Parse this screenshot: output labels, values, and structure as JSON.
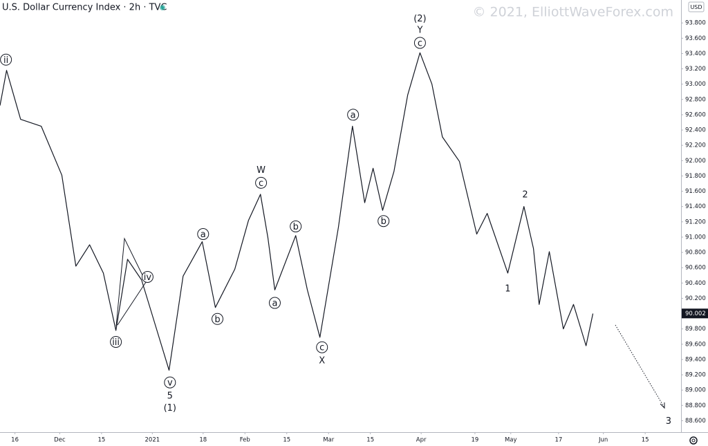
{
  "chart_data": {
    "type": "line",
    "title": "U.S. Dollar Currency Index · 2h · TVC",
    "watermark": "© 2021, ElliottWaveForex.com",
    "currency": "USD",
    "last_price": 90.002,
    "color": "#131722",
    "xlim": [
      -5,
      223
    ],
    "ylim": [
      88.45,
      94.1
    ],
    "xticks": [
      {
        "value": 0,
        "label": "16"
      },
      {
        "value": 15,
        "label": "Dec"
      },
      {
        "value": 29,
        "label": "15"
      },
      {
        "value": 46,
        "label": "2021"
      },
      {
        "value": 63,
        "label": "18"
      },
      {
        "value": 77,
        "label": "Feb"
      },
      {
        "value": 91,
        "label": "15"
      },
      {
        "value": 105,
        "label": "Mar"
      },
      {
        "value": 119,
        "label": "15"
      },
      {
        "value": 136,
        "label": "Apr"
      },
      {
        "value": 154,
        "label": "19"
      },
      {
        "value": 166,
        "label": "May"
      },
      {
        "value": 182,
        "label": "17"
      },
      {
        "value": 197,
        "label": "Jun"
      },
      {
        "value": 211,
        "label": "15"
      }
    ],
    "yticks": [
      {
        "value": 88.6,
        "label": "88.600"
      },
      {
        "value": 88.8,
        "label": "88.800"
      },
      {
        "value": 89.0,
        "label": "89.000"
      },
      {
        "value": 89.2,
        "label": "89.200"
      },
      {
        "value": 89.4,
        "label": "89.400"
      },
      {
        "value": 89.6,
        "label": "89.600"
      },
      {
        "value": 89.8,
        "label": "89.800"
      },
      {
        "value": 90.0,
        "label": "90.000"
      },
      {
        "value": 90.2,
        "label": "90.200"
      },
      {
        "value": 90.4,
        "label": "90.400"
      },
      {
        "value": 90.6,
        "label": "90.600"
      },
      {
        "value": 90.8,
        "label": "90.800"
      },
      {
        "value": 91.0,
        "label": "91.000"
      },
      {
        "value": 91.2,
        "label": "91.200"
      },
      {
        "value": 91.4,
        "label": "91.400"
      },
      {
        "value": 91.6,
        "label": "91.600"
      },
      {
        "value": 91.8,
        "label": "91.800"
      },
      {
        "value": 92.0,
        "label": "92.000"
      },
      {
        "value": 92.2,
        "label": "92.200"
      },
      {
        "value": 92.4,
        "label": "92.400"
      },
      {
        "value": 92.6,
        "label": "92.600"
      },
      {
        "value": 92.8,
        "label": "92.800"
      },
      {
        "value": 93.0,
        "label": "93.000"
      },
      {
        "value": 93.2,
        "label": "93.200"
      },
      {
        "value": 93.4,
        "label": "93.400"
      },
      {
        "value": 93.6,
        "label": "93.600"
      },
      {
        "value": 93.8,
        "label": "93.800"
      }
    ],
    "x": [
      -5,
      -2.8,
      1.9,
      8.8,
      15.7,
      20.4,
      25,
      29.6,
      33.8,
      37.7,
      42.4,
      47,
      51.6,
      56.3,
      62.7,
      67.1,
      73.6,
      78.2,
      82.2,
      84.7,
      87,
      94,
      97.9,
      102.1,
      108.3,
      113,
      117.1,
      119.9,
      123.1,
      126.9,
      131.5,
      135.6,
      139.6,
      143.1,
      148.8,
      154.6,
      158.1,
      165,
      170.4,
      173.6,
      175.5,
      178.9,
      183.6,
      187,
      191.2,
      193.5
    ],
    "values": [
      92.72,
      93.18,
      92.54,
      92.45,
      91.81,
      90.62,
      90.9,
      90.53,
      89.78,
      90.71,
      90.44,
      89.85,
      89.26,
      90.49,
      90.94,
      90.08,
      90.58,
      91.22,
      91.56,
      90.99,
      90.31,
      91.02,
      90.31,
      89.69,
      91.13,
      92.45,
      91.45,
      91.9,
      91.35,
      91.86,
      92.86,
      93.41,
      93.0,
      92.31,
      91.99,
      91.04,
      91.31,
      90.53,
      91.4,
      90.85,
      90.12,
      90.81,
      89.8,
      90.12,
      89.58,
      90.0
    ],
    "annotations": [
      {
        "text": "ii",
        "x": -3,
        "y": 93.32,
        "circled": true
      },
      {
        "text": "iii",
        "x": 33.8,
        "y": 89.63,
        "circled": true
      },
      {
        "text": "iv",
        "x": 44.4,
        "y": 90.48,
        "circled": true
      },
      {
        "text": "v",
        "x": 51.9,
        "y": 89.1,
        "circled": true
      },
      {
        "text": "5",
        "x": 51.9,
        "y": 88.93,
        "circled": false
      },
      {
        "text": "(1)",
        "x": 51.9,
        "y": 88.77,
        "circled": false
      },
      {
        "text": "a",
        "x": 63,
        "y": 91.04,
        "circled": true
      },
      {
        "text": "b",
        "x": 67.8,
        "y": 89.93,
        "circled": true
      },
      {
        "text": "c",
        "x": 82.4,
        "y": 91.71,
        "circled": true
      },
      {
        "text": "W",
        "x": 82.4,
        "y": 91.88,
        "circled": false
      },
      {
        "text": "a",
        "x": 87,
        "y": 90.14,
        "circled": true
      },
      {
        "text": "b",
        "x": 94,
        "y": 91.14,
        "circled": true
      },
      {
        "text": "c",
        "x": 102.8,
        "y": 89.56,
        "circled": true
      },
      {
        "text": "X",
        "x": 102.8,
        "y": 89.39,
        "circled": false
      },
      {
        "text": "a",
        "x": 113.2,
        "y": 92.6,
        "circled": true
      },
      {
        "text": "b",
        "x": 123.4,
        "y": 91.21,
        "circled": true
      },
      {
        "text": "c",
        "x": 135.6,
        "y": 93.54,
        "circled": true
      },
      {
        "text": "Y",
        "x": 135.6,
        "y": 93.71,
        "circled": false
      },
      {
        "text": "(2)",
        "x": 135.6,
        "y": 93.86,
        "circled": false
      },
      {
        "text": "1",
        "x": 165,
        "y": 90.33,
        "circled": false
      },
      {
        "text": "2",
        "x": 170.8,
        "y": 91.56,
        "circled": false
      },
      {
        "text": "3",
        "x": 218.8,
        "y": 88.6,
        "circled": false
      }
    ]
  }
}
